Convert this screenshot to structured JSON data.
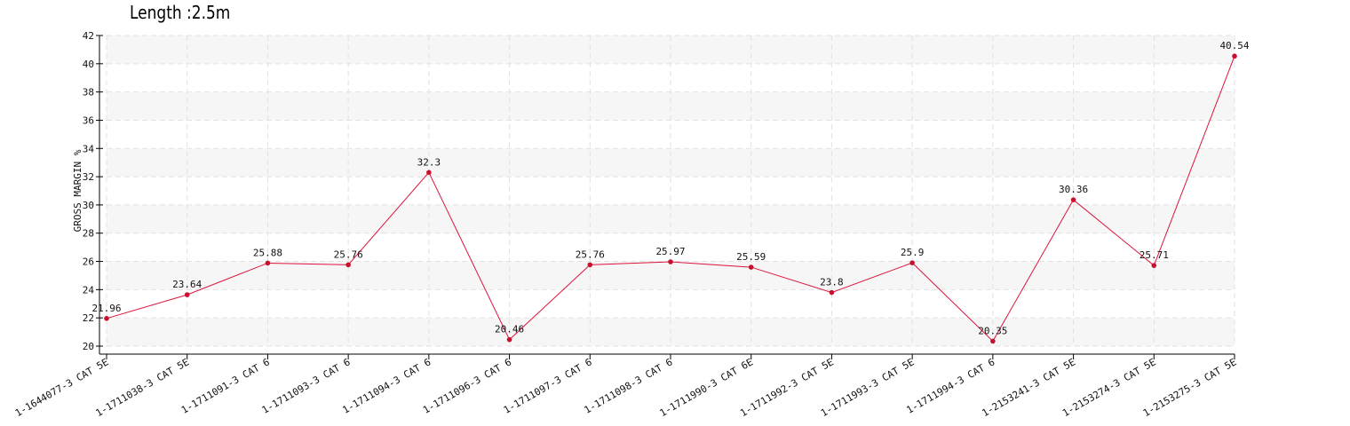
{
  "chart_data": {
    "type": "line",
    "title": "Length :2.5m",
    "xlabel": "",
    "ylabel": "GROSS MARGIN %",
    "categories": [
      "1-1644077-3 CAT 5E",
      "1-1711038-3 CAT 5E",
      "1-1711091-3 CAT 6",
      "1-1711093-3 CAT 6",
      "1-1711094-3 CAT 6",
      "1-1711096-3 CAT 6",
      "1-1711097-3 CAT 6",
      "1-1711098-3 CAT 6",
      "1-1711990-3 CAT 6E",
      "1-1711992-3 CAT 5E",
      "1-1711993-3 CAT 5E",
      "1-1711994-3 CAT 6",
      "1-2153241-3 CAT 5E",
      "1-2153274-3 CAT 5E",
      "1-2153275-3 CAT 5E"
    ],
    "values": [
      21.96,
      23.64,
      25.88,
      25.76,
      32.3,
      20.46,
      25.76,
      25.97,
      25.59,
      23.8,
      25.9,
      20.35,
      30.36,
      25.71,
      40.54
    ],
    "data_labels": [
      "21.96",
      "23.64",
      "25.88",
      "25.76",
      "32.3",
      "20.46",
      "25.76",
      "25.97",
      "25.59",
      "23.8",
      "25.9",
      "20.35",
      "30.36",
      "25.71",
      "40.54"
    ],
    "ylim": [
      20,
      42
    ],
    "yticks": [
      20,
      22,
      24,
      26,
      28,
      30,
      32,
      34,
      36,
      38,
      40,
      42
    ],
    "grid": true,
    "line_color": "#dc143c",
    "point_color": "#c8102e",
    "band_color": "#f6f6f6",
    "grid_color": "#e2e2e2"
  }
}
